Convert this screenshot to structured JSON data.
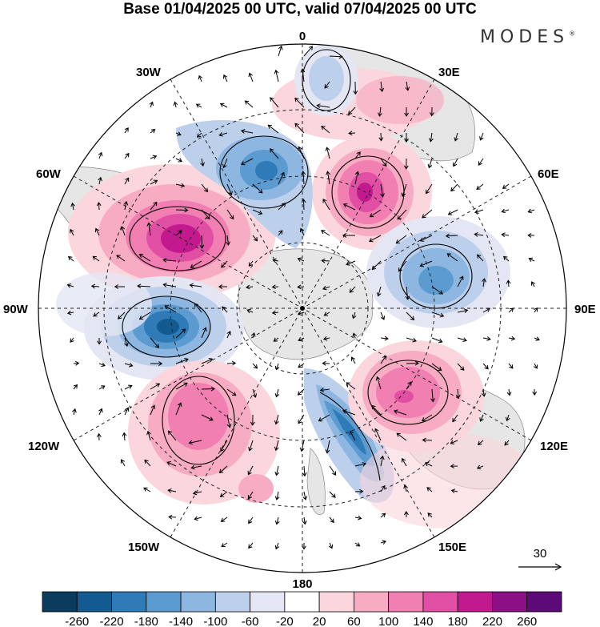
{
  "title": "Base 01/04/2025 00 UTC, valid 07/04/2025 00 UTC",
  "brand": {
    "name": "MODES",
    "mark": "®"
  },
  "longitude_labels": {
    "top": "0",
    "bottom": "180",
    "left": "90W",
    "right": "90E",
    "nw1": "30W",
    "nw2": "60W",
    "ne1": "30E",
    "ne2": "60E",
    "sw1": "120W",
    "sw2": "150W",
    "se1": "120E",
    "se2": "150E"
  },
  "vector_reference": {
    "value": "30"
  },
  "colorbar": {
    "ticks": [
      "-260",
      "-220",
      "-180",
      "-140",
      "-100",
      "-60",
      "-20",
      "20",
      "60",
      "100",
      "140",
      "180",
      "220",
      "260"
    ],
    "colors": [
      "#0b3c5d",
      "#125a8f",
      "#2e7bb8",
      "#5b9bd0",
      "#8db7e0",
      "#bccfeb",
      "#e4e6f4",
      "#ffffff",
      "#fbd6dc",
      "#f7acc3",
      "#f17fb1",
      "#e04fa3",
      "#c2198f",
      "#8c0f86",
      "#5b0a78"
    ]
  },
  "anomalies": [
    {
      "kind": "positive",
      "level": 3
    },
    {
      "kind": "negative",
      "level": 3
    },
    {
      "kind": "positive",
      "level": 4
    },
    {
      "kind": "negative",
      "level": 2
    },
    {
      "kind": "positive",
      "level": 4
    },
    {
      "kind": "negative",
      "level": 4
    },
    {
      "kind": "positive",
      "level": 3
    },
    {
      "kind": "negative",
      "level": 3
    },
    {
      "kind": "positive",
      "level": 2
    }
  ]
}
